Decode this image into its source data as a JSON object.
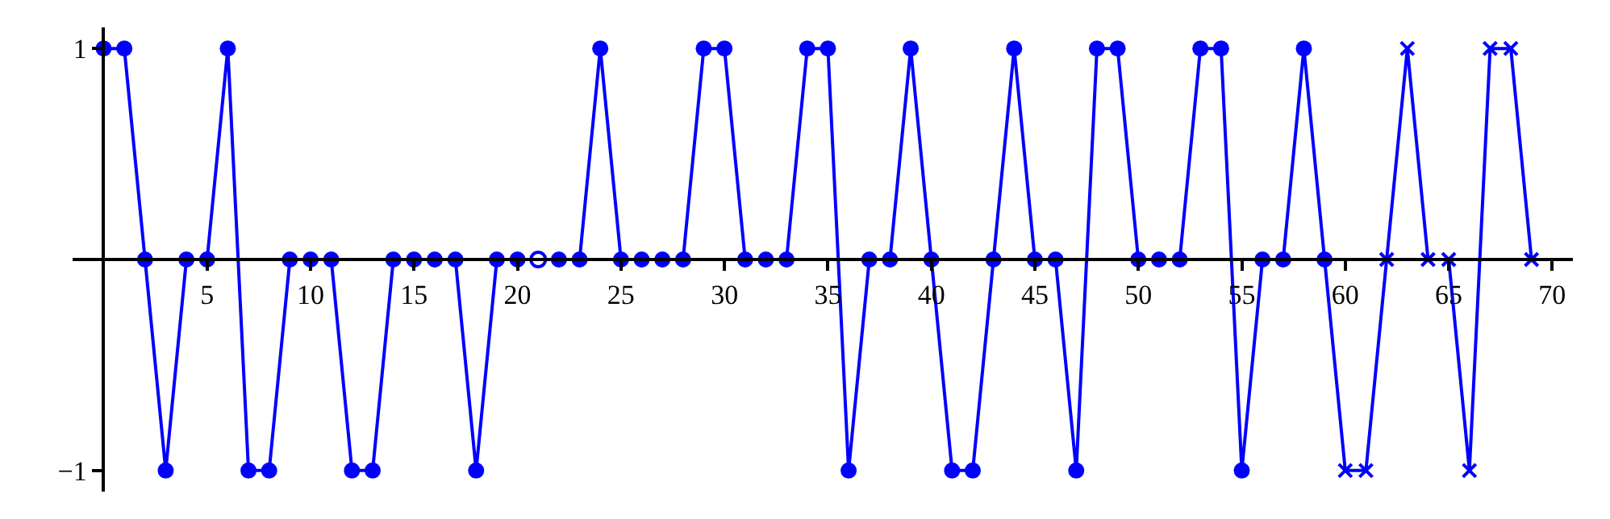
{
  "chart_data": {
    "type": "line",
    "x": [
      0,
      1,
      2,
      3,
      4,
      5,
      6,
      7,
      8,
      9,
      10,
      11,
      12,
      13,
      14,
      15,
      16,
      17,
      18,
      19,
      20,
      21,
      22,
      23,
      24,
      25,
      26,
      27,
      28,
      29,
      30,
      31,
      32,
      33,
      34,
      35,
      36,
      37,
      38,
      39,
      40,
      41,
      42,
      43,
      44,
      45,
      46,
      47,
      48,
      49,
      50,
      51,
      52,
      53,
      54,
      55,
      56,
      57,
      58,
      59,
      60,
      61,
      62,
      63,
      64,
      65,
      66,
      67,
      68,
      69
    ],
    "series": [
      {
        "marker": "none",
        "color": "#0000ff",
        "values": [
          1,
          1,
          0,
          -1,
          0,
          0,
          1,
          -1,
          -1,
          0,
          0,
          0,
          -1,
          -1,
          0,
          0,
          0,
          0,
          -1,
          0,
          0,
          0,
          0,
          0,
          1,
          0,
          0,
          0,
          0,
          1,
          1,
          0,
          0,
          0,
          1,
          1,
          -1,
          0,
          0,
          1,
          0,
          -1,
          -1,
          0,
          1,
          0,
          0,
          -1,
          1,
          1,
          0,
          0,
          0,
          1,
          1,
          -1,
          0,
          0,
          1,
          0,
          -1,
          -1,
          0,
          1,
          0,
          0,
          -1,
          1,
          1,
          0
        ]
      },
      {
        "type": "scatter",
        "marker": "circle",
        "color": "#0000ff",
        "x": [
          0,
          1,
          2,
          3,
          4,
          5,
          6,
          7,
          8,
          9,
          10,
          11,
          12,
          13,
          14,
          15,
          16,
          17,
          18,
          19,
          20,
          22,
          23,
          24,
          25,
          26,
          27,
          28,
          29,
          30,
          31,
          32,
          33,
          34,
          35,
          36,
          37,
          38,
          39,
          40,
          41,
          42,
          43,
          44,
          45,
          46,
          47,
          48,
          49,
          50,
          51,
          52,
          53,
          54,
          55,
          56,
          57,
          58,
          59
        ],
        "values": [
          1,
          1,
          0,
          -1,
          0,
          0,
          1,
          -1,
          -1,
          0,
          0,
          0,
          -1,
          -1,
          0,
          0,
          0,
          0,
          -1,
          0,
          0,
          0,
          0,
          1,
          0,
          0,
          0,
          0,
          1,
          1,
          0,
          0,
          0,
          1,
          1,
          -1,
          0,
          0,
          1,
          0,
          -1,
          -1,
          0,
          1,
          0,
          0,
          -1,
          1,
          1,
          0,
          0,
          0,
          1,
          1,
          -1,
          0,
          0,
          1,
          0
        ]
      },
      {
        "type": "scatter",
        "marker": "circle",
        "color": "#0000ff",
        "colors": [
          "#ffffff"
        ],
        "x": [
          21
        ],
        "values": [
          0
        ]
      },
      {
        "type": "scatter",
        "marker": "cross",
        "color": "#0000ff",
        "x": [
          60,
          61,
          62,
          63,
          64,
          65,
          66,
          67,
          68,
          69
        ],
        "values": [
          -1,
          -1,
          0,
          1,
          0,
          0,
          -1,
          1,
          1,
          0
        ]
      }
    ],
    "xlim": [
      -1.5,
      71
    ],
    "xticks": [
      5,
      10,
      15,
      20,
      25,
      30,
      35,
      40,
      45,
      50,
      55,
      60,
      65,
      70
    ],
    "ylim": [
      -1.1,
      1.1
    ],
    "yticks": [
      1,
      {
        "value": -1,
        "label": "−1"
      }
    ]
  }
}
